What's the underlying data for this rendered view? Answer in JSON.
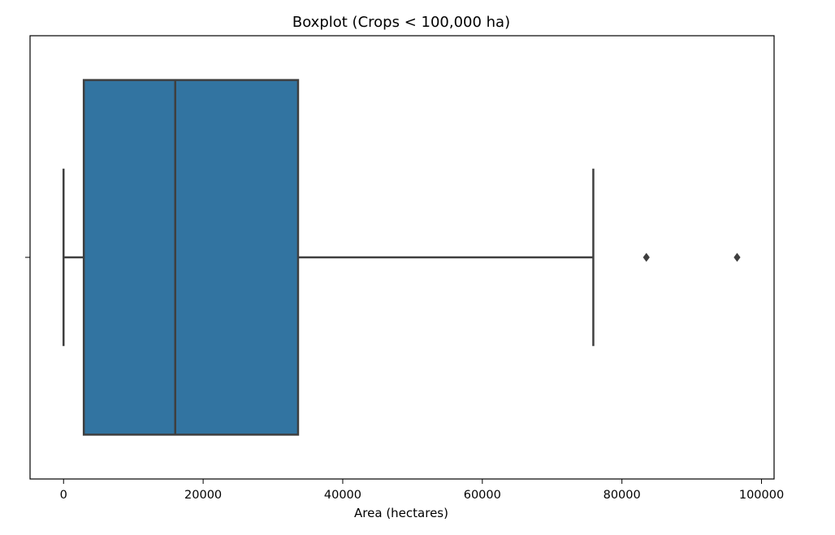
{
  "chart_data": {
    "type": "boxplot",
    "title": "Boxplot (Crops < 100,000 ha)",
    "xlabel": "Area (hectares)",
    "ylabel": "",
    "orientation": "horizontal",
    "xlim": [
      -4800,
      101800
    ],
    "x_ticks": [
      0,
      20000,
      40000,
      60000,
      80000,
      100000
    ],
    "x_tick_labels": [
      "0",
      "20000",
      "40000",
      "60000",
      "80000",
      "100000"
    ],
    "grid": false,
    "box": {
      "whisker_low": 0,
      "q1": 2900,
      "median": 16000,
      "q3": 33600,
      "whisker_high": 75900,
      "outliers": [
        83500,
        96500
      ]
    },
    "colors": {
      "box_fill": "#3274a1",
      "line": "#3f3f3f",
      "axes": "#000000"
    }
  }
}
